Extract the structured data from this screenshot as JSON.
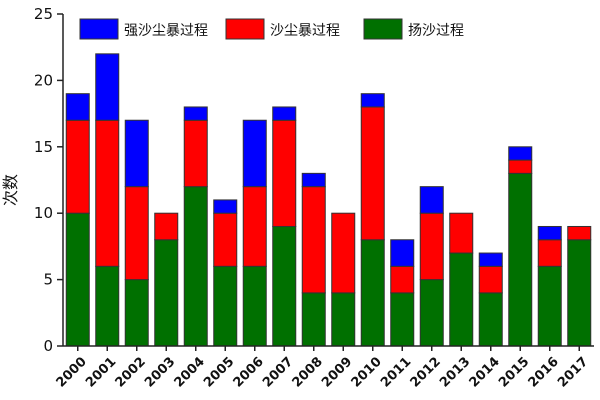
{
  "chart_data": {
    "type": "bar",
    "stacked": true,
    "categories": [
      "2000",
      "2001",
      "2002",
      "2003",
      "2004",
      "2005",
      "2006",
      "2007",
      "2008",
      "2009",
      "2010",
      "2011",
      "2012",
      "2013",
      "2014",
      "2015",
      "2016",
      "2017"
    ],
    "series": [
      {
        "name": "扬沙过程",
        "color": "#007000",
        "values": [
          10,
          6,
          5,
          8,
          12,
          6,
          6,
          9,
          4,
          4,
          8,
          4,
          5,
          7,
          4,
          13,
          6,
          8
        ]
      },
      {
        "name": "沙尘暴过程",
        "color": "#ff0000",
        "values": [
          7,
          11,
          7,
          2,
          5,
          4,
          6,
          8,
          8,
          6,
          10,
          2,
          5,
          3,
          2,
          1,
          2,
          1
        ]
      },
      {
        "name": "强沙尘暴过程",
        "color": "#0000ff",
        "values": [
          2,
          5,
          5,
          0,
          1,
          1,
          5,
          1,
          1,
          0,
          1,
          2,
          2,
          0,
          1,
          1,
          1,
          0
        ]
      }
    ],
    "ylabel": "次数",
    "xlabel": "",
    "title": "",
    "ylim": [
      0,
      25
    ],
    "yticks": [
      0,
      5,
      10,
      15,
      20,
      25
    ],
    "legend_position": "top"
  }
}
